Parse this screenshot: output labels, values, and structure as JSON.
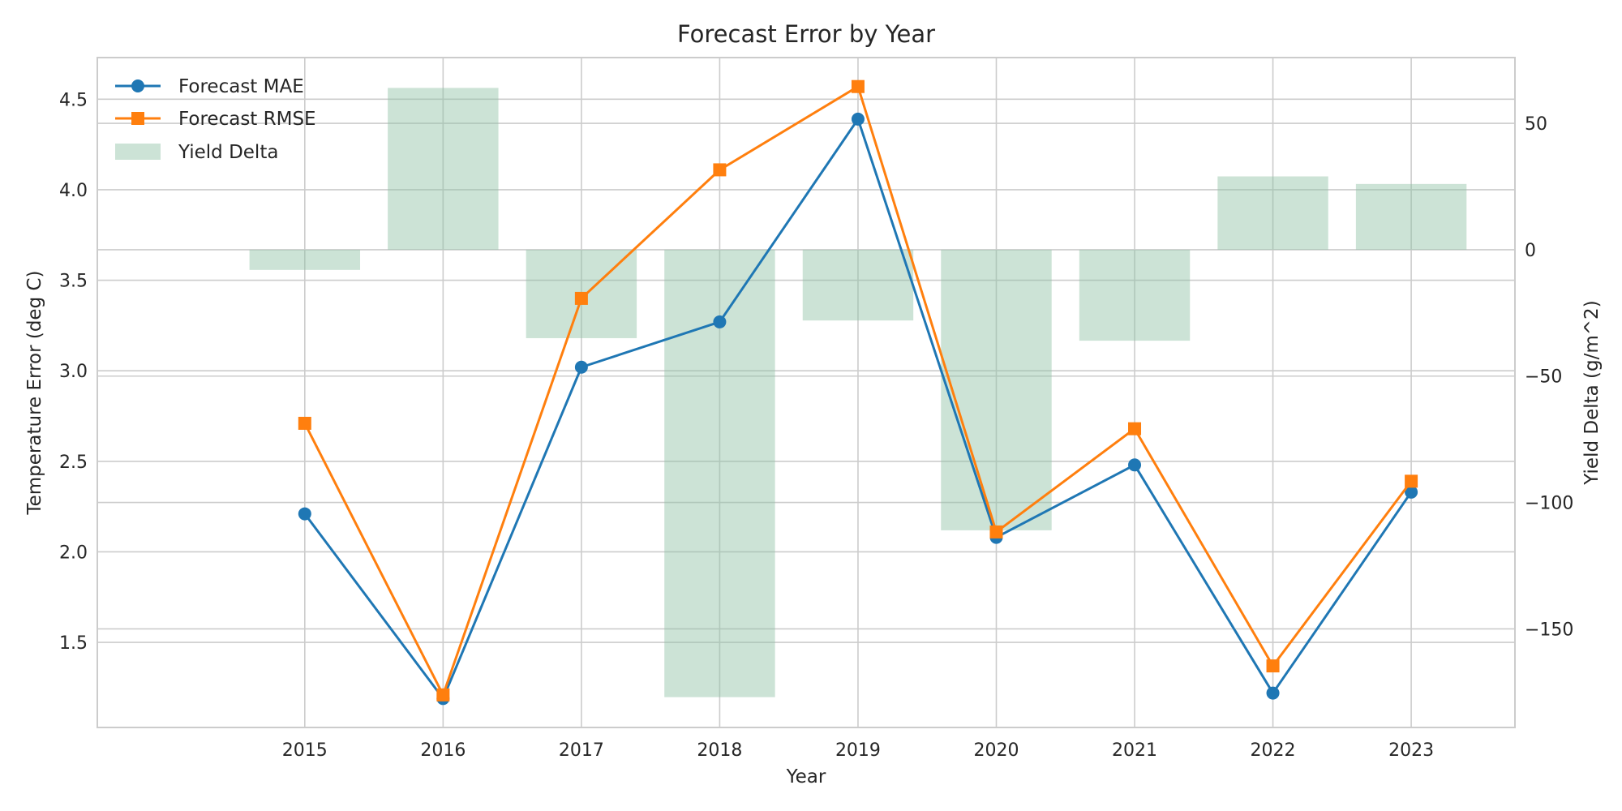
{
  "chart_data": {
    "type": "line",
    "title": "Forecast Error by Year",
    "xlabel": "Year",
    "ylabel": "Temperature Error (deg C)",
    "y2label": "Yield Delta (g/m^2)",
    "categories": [
      "2015",
      "2016",
      "2017",
      "2018",
      "2019",
      "2020",
      "2021",
      "2022",
      "2023"
    ],
    "ylim": [
      1.03,
      4.73
    ],
    "y2lim": [
      -189,
      76
    ],
    "yticks": [
      "1.5",
      "2.0",
      "2.5",
      "3.0",
      "3.5",
      "4.0",
      "4.5"
    ],
    "y2ticks": [
      "−150",
      "−100",
      "−50",
      "0",
      "50"
    ],
    "grid": true,
    "legend_position": "upper-left",
    "series": [
      {
        "name": "Forecast MAE",
        "type": "line",
        "marker": "circle",
        "axis": "left",
        "color": "#1f77b4",
        "values": [
          2.21,
          1.19,
          3.02,
          3.27,
          4.39,
          2.08,
          2.48,
          1.22,
          2.33
        ]
      },
      {
        "name": "Forecast RMSE",
        "type": "line",
        "marker": "square",
        "axis": "left",
        "color": "#ff7f0e",
        "values": [
          2.71,
          1.21,
          3.4,
          4.11,
          4.57,
          2.11,
          2.68,
          1.37,
          2.39
        ]
      },
      {
        "name": "Yield Delta",
        "type": "bar",
        "axis": "right",
        "color": "#8fc1a3",
        "values": [
          -8,
          64,
          -35,
          -177,
          -28,
          -111,
          -36,
          29,
          26
        ]
      }
    ]
  }
}
